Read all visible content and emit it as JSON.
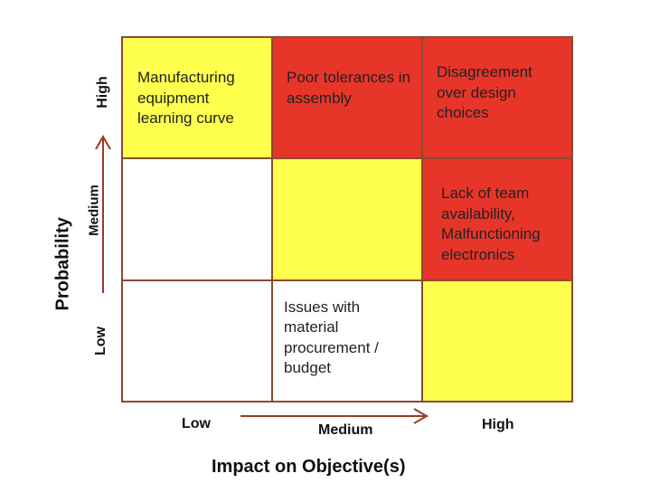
{
  "colors": {
    "high": "#e8352a",
    "medium": "#ffff4d",
    "low": "#ffffff",
    "border": "#8b4a2e",
    "arrow": "#9b3a24"
  },
  "matrix": {
    "rows": [
      {
        "probability": "High",
        "cells": [
          {
            "level": "medium",
            "text": "Manufacturing equipment learning curve"
          },
          {
            "level": "high",
            "text": "Poor tolerances in assembly"
          },
          {
            "level": "high",
            "text": "Disagreement over design choices"
          }
        ]
      },
      {
        "probability": "Medium",
        "cells": [
          {
            "level": "low",
            "text": ""
          },
          {
            "level": "medium",
            "text": ""
          },
          {
            "level": "high",
            "text": "Lack of team availability, Malfunctioning electronics"
          }
        ]
      },
      {
        "probability": "Low",
        "cells": [
          {
            "level": "low",
            "text": ""
          },
          {
            "level": "low",
            "text": "Issues with material procurement / budget"
          },
          {
            "level": "medium",
            "text": ""
          }
        ]
      }
    ]
  },
  "axes": {
    "y_title": "Probability",
    "y_ticks": [
      "High",
      "Medium",
      "Low"
    ],
    "x_title": "Impact on Objective(s)",
    "x_ticks": [
      "Low",
      "Medium",
      "High"
    ]
  }
}
